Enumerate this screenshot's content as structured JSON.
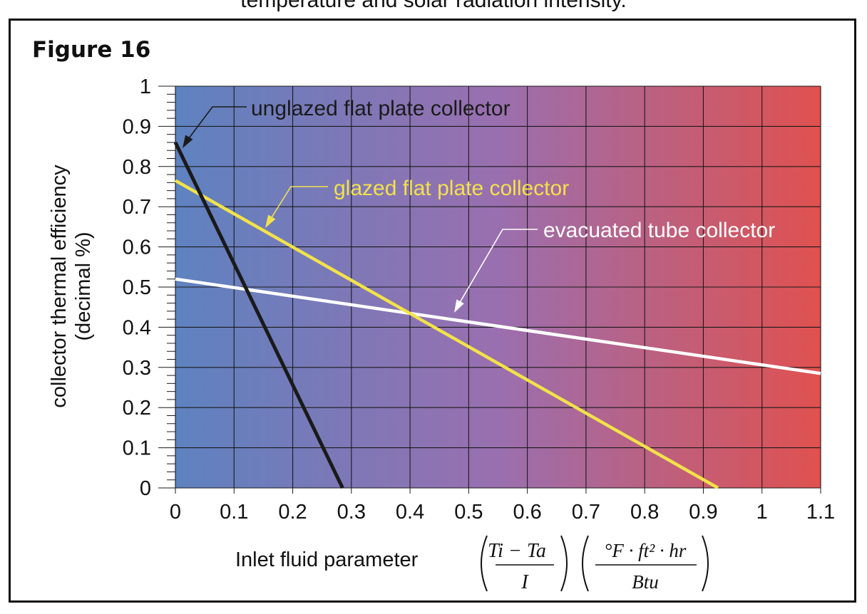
{
  "page": {
    "caption_top": "temperature and solar radiation intensity.",
    "figure_label": "Figure 16"
  },
  "colors": {
    "gradient_left": "#5e82c0",
    "gradient_mid": "#9a6faf",
    "gradient_right": "#e0514f",
    "unglazed": "#1a1a1a",
    "glazed": "#f2e24a",
    "evacuated": "#ffffff"
  },
  "chart_data": {
    "type": "line",
    "title": "",
    "xlabel": "Inlet fluid parameter",
    "xlabel_formula_fraction": {
      "numerator": "Ti − Ta",
      "denominator": "I"
    },
    "xlabel_units_fraction": {
      "numerator": "°F · ft² · hr",
      "denominator": "Btu"
    },
    "ylabel": "collector thermal efficiency (decimal %)",
    "ylabel_lines": [
      "collector thermal efficiency",
      "(decimal %)"
    ],
    "xlim": [
      0,
      1.1
    ],
    "ylim": [
      0,
      1
    ],
    "xticks": [
      "0",
      "0.1",
      "0.2",
      "0.3",
      "0.4",
      "0.5",
      "0.6",
      "0.7",
      "0.8",
      "0.9",
      "1",
      "1.1"
    ],
    "yticks": [
      "0",
      "0.1",
      "0.2",
      "0.3",
      "0.4",
      "0.5",
      "0.6",
      "0.7",
      "0.8",
      "0.9",
      "1"
    ],
    "grid": true,
    "series": [
      {
        "name": "unglazed flat plate collector",
        "x": [
          0,
          0.285
        ],
        "y": [
          0.86,
          0
        ]
      },
      {
        "name": "glazed flat plate collector",
        "x": [
          0,
          0.925
        ],
        "y": [
          0.765,
          0
        ]
      },
      {
        "name": "evacuated tube collector",
        "x": [
          0,
          1.1
        ],
        "y": [
          0.52,
          0.285
        ]
      }
    ]
  }
}
